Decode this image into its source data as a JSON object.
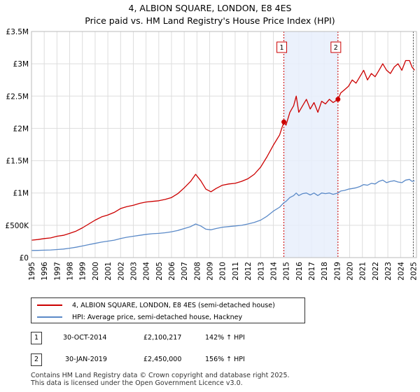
{
  "title_line1": "4, ALBION SQUARE, LONDON, E8 4ES",
  "title_line2": "Price paid vs. HM Land Registry's House Price Index (HPI)",
  "chart_data": {
    "type": "line",
    "xlim": [
      1995,
      2025.25
    ],
    "ylim": [
      0,
      3500000
    ],
    "x_ticks": [
      "1995",
      "1996",
      "1997",
      "1998",
      "1999",
      "2000",
      "2001",
      "2002",
      "2003",
      "2004",
      "2005",
      "2006",
      "2007",
      "2008",
      "2009",
      "2010",
      "2011",
      "2012",
      "2013",
      "2014",
      "2015",
      "2016",
      "2017",
      "2018",
      "2019",
      "2020",
      "2021",
      "2022",
      "2023",
      "2024",
      "2025"
    ],
    "y_ticks": [
      {
        "value": 0,
        "label": "£0"
      },
      {
        "value": 500000,
        "label": "£500K"
      },
      {
        "value": 1000000,
        "label": "£1M"
      },
      {
        "value": 1500000,
        "label": "£1.5M"
      },
      {
        "value": 2000000,
        "label": "£2M"
      },
      {
        "value": 2500000,
        "label": "£2.5M"
      },
      {
        "value": 3000000,
        "label": "£3M"
      },
      {
        "value": 3500000,
        "label": "£3.5M"
      }
    ],
    "grid": true,
    "series": [
      {
        "name": "4, ALBION SQUARE, LONDON, E8 4ES (semi-detached house)",
        "color": "#cc0000",
        "x": [
          1995.0,
          1995.5,
          1996.0,
          1996.5,
          1997.0,
          1997.5,
          1998.0,
          1998.5,
          1999.0,
          1999.5,
          2000.0,
          2000.5,
          2001.0,
          2001.5,
          2002.0,
          2002.5,
          2003.0,
          2003.5,
          2004.0,
          2004.5,
          2005.0,
          2005.5,
          2006.0,
          2006.5,
          2007.0,
          2007.5,
          2007.9,
          2008.3,
          2008.7,
          2009.1,
          2009.5,
          2010.0,
          2010.5,
          2011.0,
          2011.5,
          2012.0,
          2012.5,
          2013.0,
          2013.5,
          2014.0,
          2014.5,
          2014.83,
          2015.0,
          2015.3,
          2015.6,
          2015.8,
          2016.0,
          2016.3,
          2016.6,
          2016.9,
          2017.2,
          2017.5,
          2017.8,
          2018.1,
          2018.4,
          2018.7,
          2019.08,
          2019.3,
          2019.6,
          2019.9,
          2020.2,
          2020.5,
          2020.8,
          2021.1,
          2021.4,
          2021.7,
          2022.0,
          2022.3,
          2022.6,
          2022.9,
          2023.2,
          2023.5,
          2023.8,
          2024.1,
          2024.4,
          2024.7,
          2024.9,
          2025.1
        ],
        "values": [
          270000,
          280000,
          295000,
          305000,
          330000,
          345000,
          375000,
          410000,
          460000,
          520000,
          580000,
          630000,
          660000,
          700000,
          760000,
          790000,
          810000,
          840000,
          860000,
          870000,
          880000,
          900000,
          930000,
          990000,
          1080000,
          1180000,
          1290000,
          1190000,
          1060000,
          1020000,
          1070000,
          1120000,
          1140000,
          1150000,
          1180000,
          1220000,
          1290000,
          1400000,
          1560000,
          1740000,
          1900000,
          2100217,
          2050000,
          2250000,
          2350000,
          2500000,
          2250000,
          2350000,
          2450000,
          2300000,
          2400000,
          2250000,
          2420000,
          2380000,
          2450000,
          2400000,
          2450000,
          2550000,
          2600000,
          2650000,
          2750000,
          2700000,
          2800000,
          2900000,
          2750000,
          2850000,
          2800000,
          2900000,
          3000000,
          2900000,
          2850000,
          2950000,
          3000000,
          2900000,
          3050000,
          3050000,
          2950000,
          2900000
        ]
      },
      {
        "name": "HPI: Average price, semi-detached house, Hackney",
        "color": "#5b8ac8",
        "x": [
          1995.0,
          1995.5,
          1996.0,
          1996.5,
          1997.0,
          1997.5,
          1998.0,
          1998.5,
          1999.0,
          1999.5,
          2000.0,
          2000.5,
          2001.0,
          2001.5,
          2002.0,
          2002.5,
          2003.0,
          2003.5,
          2004.0,
          2004.5,
          2005.0,
          2005.5,
          2006.0,
          2006.5,
          2007.0,
          2007.5,
          2007.9,
          2008.3,
          2008.7,
          2009.1,
          2009.5,
          2010.0,
          2010.5,
          2011.0,
          2011.5,
          2012.0,
          2012.5,
          2013.0,
          2013.5,
          2014.0,
          2014.5,
          2014.83,
          2015.0,
          2015.3,
          2015.6,
          2015.8,
          2016.0,
          2016.3,
          2016.6,
          2016.9,
          2017.2,
          2017.5,
          2017.8,
          2018.1,
          2018.4,
          2018.7,
          2019.08,
          2019.3,
          2019.6,
          2019.9,
          2020.2,
          2020.5,
          2020.8,
          2021.1,
          2021.4,
          2021.7,
          2022.0,
          2022.3,
          2022.6,
          2022.9,
          2023.2,
          2023.5,
          2023.8,
          2024.1,
          2024.4,
          2024.7,
          2024.9,
          2025.1
        ],
        "values": [
          110000,
          112000,
          115000,
          118000,
          125000,
          132000,
          145000,
          160000,
          180000,
          200000,
          220000,
          240000,
          255000,
          270000,
          295000,
          315000,
          330000,
          345000,
          360000,
          370000,
          375000,
          385000,
          400000,
          420000,
          450000,
          480000,
          520000,
          490000,
          440000,
          430000,
          450000,
          470000,
          480000,
          490000,
          500000,
          520000,
          545000,
          580000,
          640000,
          720000,
          780000,
          850000,
          870000,
          930000,
          960000,
          1000000,
          960000,
          990000,
          1000000,
          970000,
          1000000,
          960000,
          1000000,
          990000,
          1000000,
          980000,
          1000000,
          1030000,
          1040000,
          1060000,
          1070000,
          1080000,
          1100000,
          1130000,
          1120000,
          1150000,
          1140000,
          1180000,
          1200000,
          1160000,
          1180000,
          1190000,
          1170000,
          1160000,
          1200000,
          1210000,
          1180000,
          1190000
        ]
      }
    ],
    "annotations": [
      {
        "label": "1",
        "date": 2014.83,
        "price": 2100217
      },
      {
        "label": "2",
        "date": 2019.08,
        "price": 2450000
      }
    ],
    "shaded_span": [
      2014.83,
      2019.08
    ]
  },
  "legend": {
    "property_label": "4, ALBION SQUARE, LONDON, E8 4ES (semi-detached house)",
    "hpi_label": "HPI: Average price, semi-detached house, Hackney"
  },
  "sales": [
    {
      "badge": "1",
      "date": "30-OCT-2014",
      "price": "£2,100,217",
      "hpi": "142% ↑ HPI"
    },
    {
      "badge": "2",
      "date": "30-JAN-2019",
      "price": "£2,450,000",
      "hpi": "156% ↑ HPI"
    }
  ],
  "footer": {
    "line1": "Contains HM Land Registry data © Crown copyright and database right 2025.",
    "line2": "This data is licensed under the Open Government Licence v3.0."
  }
}
